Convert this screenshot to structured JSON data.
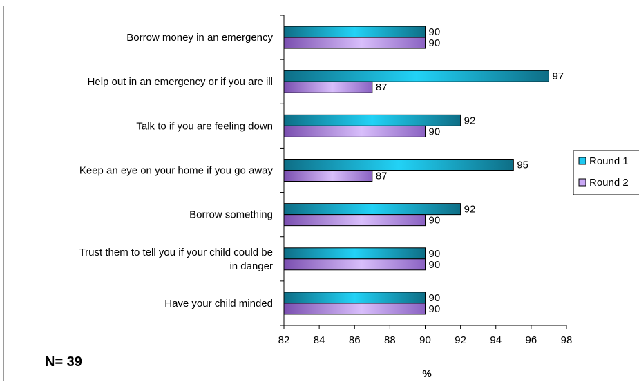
{
  "chart_data": {
    "type": "bar",
    "orientation": "horizontal",
    "categories": [
      "Borrow money in an emergency",
      "Help out in an emergency or if you are ill",
      "Talk to if you are feeling down",
      "Keep an eye on your home if you go away",
      "Borrow something",
      [
        "Trust them to tell you if your child could be",
        "in danger"
      ],
      "Have your child minded"
    ],
    "series": [
      {
        "name": "Round 1",
        "color": "#1FC8F0",
        "values": [
          90,
          97,
          92,
          95,
          92,
          90,
          90
        ]
      },
      {
        "name": "Round 2",
        "color": "#C9A8F5",
        "values": [
          90,
          87,
          90,
          87,
          90,
          90,
          90
        ]
      }
    ],
    "xlabel": "%",
    "xlim": [
      82,
      98
    ],
    "xticks": [
      82,
      84,
      86,
      88,
      90,
      92,
      94,
      96,
      98
    ],
    "legend_position": "right",
    "grid": false,
    "annotation": "N= 39"
  }
}
